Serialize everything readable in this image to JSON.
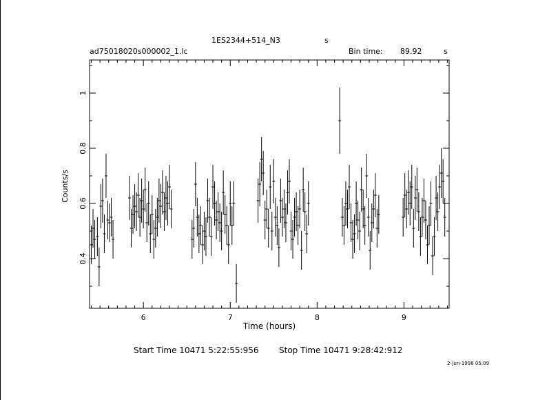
{
  "header": {
    "object_name": "1ES2344+514_N3",
    "object_unit": "s",
    "file_name": "ad75018020s000002_1.lc",
    "bin_time_label": "Bin time:",
    "bin_time_value": "89.92",
    "bin_time_unit": "s"
  },
  "footer": {
    "start_time": "Start Time 10471  5:22:55:956",
    "stop_time": "Stop Time 10471  9:28:42:912",
    "date_stamp": "2-Jun-1998 05:09"
  },
  "chart_data": {
    "type": "scatter",
    "xlabel": "Time (hours)",
    "ylabel": "Counts/s",
    "xlim": [
      5.38,
      9.52
    ],
    "ylim": [
      0.22,
      1.12
    ],
    "xticks": [
      "6",
      "7",
      "8",
      "9"
    ],
    "yticks": [
      "0.4",
      "0.6",
      "0.8",
      "1"
    ],
    "xtick_values": [
      6,
      7,
      8,
      9
    ],
    "ytick_values": [
      0.4,
      0.6,
      0.8,
      1.0
    ],
    "error_bars": true,
    "series": [
      {
        "points": [
          {
            "x": 5.4,
            "y": 0.45,
            "err": 0.07
          },
          {
            "x": 5.42,
            "y": 0.51,
            "err": 0.07
          },
          {
            "x": 5.44,
            "y": 0.47,
            "err": 0.07
          },
          {
            "x": 5.47,
            "y": 0.48,
            "err": 0.07
          },
          {
            "x": 5.49,
            "y": 0.37,
            "err": 0.07
          },
          {
            "x": 5.51,
            "y": 0.59,
            "err": 0.08
          },
          {
            "x": 5.53,
            "y": 0.61,
            "err": 0.08
          },
          {
            "x": 5.55,
            "y": 0.49,
            "err": 0.07
          },
          {
            "x": 5.57,
            "y": 0.7,
            "err": 0.08
          },
          {
            "x": 5.59,
            "y": 0.54,
            "err": 0.07
          },
          {
            "x": 5.61,
            "y": 0.53,
            "err": 0.07
          },
          {
            "x": 5.63,
            "y": 0.55,
            "err": 0.07
          },
          {
            "x": 5.65,
            "y": 0.47,
            "err": 0.07
          },
          {
            "x": 5.84,
            "y": 0.62,
            "err": 0.08
          },
          {
            "x": 5.86,
            "y": 0.51,
            "err": 0.07
          },
          {
            "x": 5.88,
            "y": 0.56,
            "err": 0.07
          },
          {
            "x": 5.9,
            "y": 0.59,
            "err": 0.08
          },
          {
            "x": 5.92,
            "y": 0.57,
            "err": 0.07
          },
          {
            "x": 5.94,
            "y": 0.63,
            "err": 0.08
          },
          {
            "x": 5.96,
            "y": 0.55,
            "err": 0.07
          },
          {
            "x": 5.98,
            "y": 0.61,
            "err": 0.08
          },
          {
            "x": 6.0,
            "y": 0.58,
            "err": 0.07
          },
          {
            "x": 6.02,
            "y": 0.65,
            "err": 0.08
          },
          {
            "x": 6.04,
            "y": 0.53,
            "err": 0.07
          },
          {
            "x": 6.06,
            "y": 0.6,
            "err": 0.08
          },
          {
            "x": 6.08,
            "y": 0.49,
            "err": 0.07
          },
          {
            "x": 6.1,
            "y": 0.56,
            "err": 0.07
          },
          {
            "x": 6.12,
            "y": 0.47,
            "err": 0.07
          },
          {
            "x": 6.14,
            "y": 0.51,
            "err": 0.07
          },
          {
            "x": 6.16,
            "y": 0.55,
            "err": 0.07
          },
          {
            "x": 6.18,
            "y": 0.61,
            "err": 0.08
          },
          {
            "x": 6.2,
            "y": 0.59,
            "err": 0.08
          },
          {
            "x": 6.22,
            "y": 0.64,
            "err": 0.08
          },
          {
            "x": 6.24,
            "y": 0.57,
            "err": 0.07
          },
          {
            "x": 6.26,
            "y": 0.62,
            "err": 0.08
          },
          {
            "x": 6.28,
            "y": 0.6,
            "err": 0.08
          },
          {
            "x": 6.3,
            "y": 0.66,
            "err": 0.08
          },
          {
            "x": 6.32,
            "y": 0.58,
            "err": 0.07
          },
          {
            "x": 6.56,
            "y": 0.47,
            "err": 0.07
          },
          {
            "x": 6.58,
            "y": 0.51,
            "err": 0.07
          },
          {
            "x": 6.6,
            "y": 0.67,
            "err": 0.08
          },
          {
            "x": 6.62,
            "y": 0.55,
            "err": 0.07
          },
          {
            "x": 6.64,
            "y": 0.49,
            "err": 0.07
          },
          {
            "x": 6.66,
            "y": 0.52,
            "err": 0.07
          },
          {
            "x": 6.68,
            "y": 0.45,
            "err": 0.07
          },
          {
            "x": 6.7,
            "y": 0.5,
            "err": 0.07
          },
          {
            "x": 6.72,
            "y": 0.48,
            "err": 0.07
          },
          {
            "x": 6.74,
            "y": 0.61,
            "err": 0.08
          },
          {
            "x": 6.76,
            "y": 0.55,
            "err": 0.07
          },
          {
            "x": 6.78,
            "y": 0.48,
            "err": 0.07
          },
          {
            "x": 6.8,
            "y": 0.66,
            "err": 0.08
          },
          {
            "x": 6.82,
            "y": 0.6,
            "err": 0.08
          },
          {
            "x": 6.84,
            "y": 0.54,
            "err": 0.07
          },
          {
            "x": 6.86,
            "y": 0.57,
            "err": 0.07
          },
          {
            "x": 6.88,
            "y": 0.53,
            "err": 0.07
          },
          {
            "x": 6.9,
            "y": 0.5,
            "err": 0.07
          },
          {
            "x": 6.92,
            "y": 0.64,
            "err": 0.08
          },
          {
            "x": 6.94,
            "y": 0.56,
            "err": 0.07
          },
          {
            "x": 6.96,
            "y": 0.52,
            "err": 0.07
          },
          {
            "x": 6.98,
            "y": 0.45,
            "err": 0.07
          },
          {
            "x": 7.0,
            "y": 0.6,
            "err": 0.08
          },
          {
            "x": 7.02,
            "y": 0.52,
            "err": 0.07
          },
          {
            "x": 7.04,
            "y": 0.6,
            "err": 0.08
          },
          {
            "x": 7.07,
            "y": 0.31,
            "err": 0.07
          },
          {
            "x": 7.32,
            "y": 0.61,
            "err": 0.08
          },
          {
            "x": 7.34,
            "y": 0.67,
            "err": 0.08
          },
          {
            "x": 7.36,
            "y": 0.76,
            "err": 0.08
          },
          {
            "x": 7.38,
            "y": 0.71,
            "err": 0.08
          },
          {
            "x": 7.4,
            "y": 0.54,
            "err": 0.07
          },
          {
            "x": 7.42,
            "y": 0.58,
            "err": 0.07
          },
          {
            "x": 7.44,
            "y": 0.51,
            "err": 0.07
          },
          {
            "x": 7.46,
            "y": 0.66,
            "err": 0.08
          },
          {
            "x": 7.48,
            "y": 0.5,
            "err": 0.07
          },
          {
            "x": 7.5,
            "y": 0.68,
            "err": 0.08
          },
          {
            "x": 7.52,
            "y": 0.55,
            "err": 0.07
          },
          {
            "x": 7.54,
            "y": 0.52,
            "err": 0.07
          },
          {
            "x": 7.56,
            "y": 0.44,
            "err": 0.07
          },
          {
            "x": 7.58,
            "y": 0.61,
            "err": 0.08
          },
          {
            "x": 7.6,
            "y": 0.55,
            "err": 0.07
          },
          {
            "x": 7.62,
            "y": 0.58,
            "err": 0.07
          },
          {
            "x": 7.64,
            "y": 0.53,
            "err": 0.07
          },
          {
            "x": 7.66,
            "y": 0.64,
            "err": 0.08
          },
          {
            "x": 7.68,
            "y": 0.68,
            "err": 0.08
          },
          {
            "x": 7.7,
            "y": 0.5,
            "err": 0.07
          },
          {
            "x": 7.72,
            "y": 0.47,
            "err": 0.07
          },
          {
            "x": 7.74,
            "y": 0.55,
            "err": 0.07
          },
          {
            "x": 7.76,
            "y": 0.57,
            "err": 0.07
          },
          {
            "x": 7.78,
            "y": 0.52,
            "err": 0.07
          },
          {
            "x": 7.8,
            "y": 0.58,
            "err": 0.07
          },
          {
            "x": 7.82,
            "y": 0.43,
            "err": 0.07
          },
          {
            "x": 7.84,
            "y": 0.65,
            "err": 0.08
          },
          {
            "x": 7.86,
            "y": 0.57,
            "err": 0.07
          },
          {
            "x": 7.88,
            "y": 0.49,
            "err": 0.07
          },
          {
            "x": 7.9,
            "y": 0.6,
            "err": 0.08
          },
          {
            "x": 8.26,
            "y": 0.9,
            "err": 0.12
          },
          {
            "x": 8.29,
            "y": 0.55,
            "err": 0.07
          },
          {
            "x": 8.31,
            "y": 0.52,
            "err": 0.07
          },
          {
            "x": 8.33,
            "y": 0.6,
            "err": 0.08
          },
          {
            "x": 8.35,
            "y": 0.58,
            "err": 0.07
          },
          {
            "x": 8.37,
            "y": 0.66,
            "err": 0.08
          },
          {
            "x": 8.39,
            "y": 0.53,
            "err": 0.07
          },
          {
            "x": 8.41,
            "y": 0.47,
            "err": 0.07
          },
          {
            "x": 8.43,
            "y": 0.49,
            "err": 0.07
          },
          {
            "x": 8.45,
            "y": 0.6,
            "err": 0.08
          },
          {
            "x": 8.47,
            "y": 0.54,
            "err": 0.07
          },
          {
            "x": 8.49,
            "y": 0.5,
            "err": 0.07
          },
          {
            "x": 8.51,
            "y": 0.65,
            "err": 0.08
          },
          {
            "x": 8.53,
            "y": 0.58,
            "err": 0.07
          },
          {
            "x": 8.55,
            "y": 0.52,
            "err": 0.07
          },
          {
            "x": 8.57,
            "y": 0.7,
            "err": 0.08
          },
          {
            "x": 8.59,
            "y": 0.55,
            "err": 0.07
          },
          {
            "x": 8.61,
            "y": 0.43,
            "err": 0.07
          },
          {
            "x": 8.63,
            "y": 0.53,
            "err": 0.07
          },
          {
            "x": 8.65,
            "y": 0.58,
            "err": 0.07
          },
          {
            "x": 8.67,
            "y": 0.63,
            "err": 0.08
          },
          {
            "x": 8.69,
            "y": 0.51,
            "err": 0.07
          },
          {
            "x": 8.71,
            "y": 0.56,
            "err": 0.07
          },
          {
            "x": 8.99,
            "y": 0.55,
            "err": 0.07
          },
          {
            "x": 9.01,
            "y": 0.63,
            "err": 0.08
          },
          {
            "x": 9.03,
            "y": 0.58,
            "err": 0.07
          },
          {
            "x": 9.05,
            "y": 0.64,
            "err": 0.08
          },
          {
            "x": 9.07,
            "y": 0.6,
            "err": 0.08
          },
          {
            "x": 9.09,
            "y": 0.66,
            "err": 0.08
          },
          {
            "x": 9.11,
            "y": 0.51,
            "err": 0.07
          },
          {
            "x": 9.13,
            "y": 0.62,
            "err": 0.08
          },
          {
            "x": 9.15,
            "y": 0.65,
            "err": 0.08
          },
          {
            "x": 9.17,
            "y": 0.57,
            "err": 0.07
          },
          {
            "x": 9.19,
            "y": 0.48,
            "err": 0.07
          },
          {
            "x": 9.21,
            "y": 0.55,
            "err": 0.07
          },
          {
            "x": 9.23,
            "y": 0.61,
            "err": 0.08
          },
          {
            "x": 9.25,
            "y": 0.54,
            "err": 0.07
          },
          {
            "x": 9.27,
            "y": 0.45,
            "err": 0.07
          },
          {
            "x": 9.29,
            "y": 0.52,
            "err": 0.07
          },
          {
            "x": 9.31,
            "y": 0.6,
            "err": 0.08
          },
          {
            "x": 9.33,
            "y": 0.41,
            "err": 0.07
          },
          {
            "x": 9.35,
            "y": 0.48,
            "err": 0.07
          },
          {
            "x": 9.37,
            "y": 0.62,
            "err": 0.08
          },
          {
            "x": 9.39,
            "y": 0.57,
            "err": 0.07
          },
          {
            "x": 9.41,
            "y": 0.66,
            "err": 0.08
          },
          {
            "x": 9.43,
            "y": 0.71,
            "err": 0.09
          },
          {
            "x": 9.45,
            "y": 0.68,
            "err": 0.08
          },
          {
            "x": 9.47,
            "y": 0.55,
            "err": 0.07
          }
        ]
      }
    ]
  }
}
